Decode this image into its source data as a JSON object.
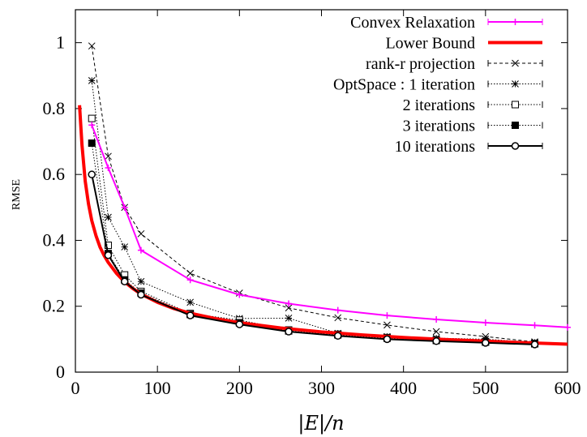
{
  "chart_data": {
    "type": "line",
    "title": "",
    "xlabel": "|E|/n",
    "ylabel": "RMSE",
    "xlim": [
      0,
      600
    ],
    "ylim": [
      0,
      1.1
    ],
    "xticks": [
      0,
      100,
      200,
      300,
      400,
      500,
      600
    ],
    "xtick_labels": [
      "0",
      "100",
      "200",
      "300",
      "400",
      "500",
      "600"
    ],
    "yticks": [
      0,
      0.2,
      0.4,
      0.6,
      0.8,
      1.0
    ],
    "ytick_labels": [
      "0",
      "0.2",
      "0.4",
      "0.6",
      "0.8",
      "1"
    ],
    "grid": false,
    "legend_position": "top-right",
    "series": [
      {
        "name": "Convex Relaxation",
        "color": "#ff00ff",
        "style": "solid",
        "marker": "plus",
        "x": [
          20,
          40,
          60,
          80,
          140,
          200,
          260,
          320,
          380,
          440,
          500,
          560,
          600
        ],
        "y": [
          0.75,
          0.62,
          0.5,
          0.37,
          0.28,
          0.235,
          0.208,
          0.188,
          0.172,
          0.16,
          0.15,
          0.142,
          0.136
        ]
      },
      {
        "name": "Lower Bound",
        "color": "#ff0000",
        "style": "thick",
        "marker": "none",
        "x": [
          5,
          8,
          12,
          16,
          20,
          25,
          30,
          35,
          40,
          50,
          60,
          70,
          80,
          100,
          120,
          140,
          170,
          200,
          250,
          300,
          350,
          400,
          450,
          500,
          550,
          600
        ],
        "y": [
          0.81,
          0.69,
          0.58,
          0.51,
          0.46,
          0.415,
          0.38,
          0.354,
          0.333,
          0.3,
          0.274,
          0.254,
          0.237,
          0.212,
          0.193,
          0.179,
          0.163,
          0.15,
          0.134,
          0.122,
          0.113,
          0.105,
          0.099,
          0.094,
          0.089,
          0.085
        ]
      },
      {
        "name": "rank-r projection",
        "color": "#000000",
        "style": "dashed",
        "marker": "x",
        "x": [
          20,
          40,
          60,
          80,
          140,
          200,
          260,
          320,
          380,
          440,
          500,
          560
        ],
        "y": [
          0.99,
          0.655,
          0.5,
          0.42,
          0.3,
          0.24,
          0.195,
          0.165,
          0.143,
          0.123,
          0.108,
          0.092
        ]
      },
      {
        "name": "OptSpace : 1 iteration",
        "color": "#000000",
        "style": "dotted",
        "marker": "star",
        "x": [
          20,
          40,
          60,
          80,
          140,
          200,
          260,
          320,
          380,
          440,
          500,
          560
        ],
        "y": [
          0.885,
          0.47,
          0.38,
          0.275,
          0.212,
          0.163,
          0.164,
          0.118,
          0.108,
          0.103,
          0.1,
          0.09
        ]
      },
      {
        "name": "2 iterations",
        "color": "#000000",
        "style": "dotted",
        "marker": "open-square",
        "x": [
          20,
          40,
          60,
          80,
          140,
          200,
          260,
          320,
          380,
          440,
          500,
          560
        ],
        "y": [
          0.77,
          0.385,
          0.295,
          0.245,
          0.178,
          0.158,
          0.128,
          0.115,
          0.105,
          0.098,
          0.093,
          0.087
        ]
      },
      {
        "name": "3 iterations",
        "color": "#000000",
        "style": "dotted",
        "marker": "filled-square",
        "x": [
          20,
          40,
          60,
          80,
          140,
          200,
          260,
          320,
          380,
          440,
          500,
          560
        ],
        "y": [
          0.695,
          0.36,
          0.28,
          0.24,
          0.175,
          0.15,
          0.125,
          0.113,
          0.103,
          0.096,
          0.091,
          0.086
        ]
      },
      {
        "name": "10 iterations",
        "color": "#000000",
        "style": "solid",
        "marker": "open-circle",
        "x": [
          20,
          40,
          60,
          80,
          140,
          200,
          260,
          320,
          380,
          440,
          500,
          560
        ],
        "y": [
          0.6,
          0.355,
          0.275,
          0.235,
          0.172,
          0.145,
          0.123,
          0.11,
          0.1,
          0.094,
          0.089,
          0.084
        ]
      }
    ]
  }
}
